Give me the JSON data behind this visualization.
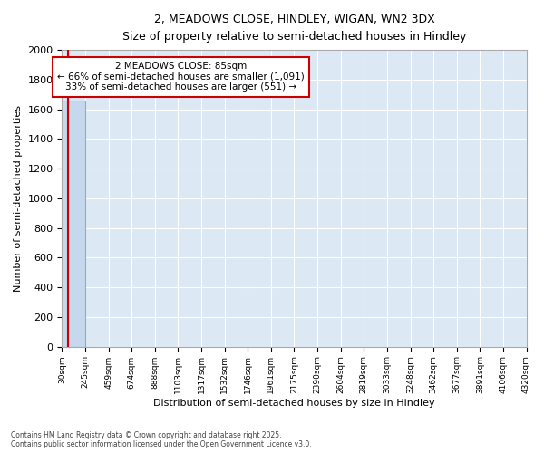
{
  "title_line1": "2, MEADOWS CLOSE, HINDLEY, WIGAN, WN2 3DX",
  "title_line2": "Size of property relative to semi-detached houses in Hindley",
  "xlabel": "Distribution of semi-detached houses by size in Hindley",
  "ylabel": "Number of semi-detached properties",
  "bin_edges": [
    30,
    245,
    459,
    674,
    888,
    1103,
    1317,
    1532,
    1746,
    1961,
    2175,
    2390,
    2604,
    2819,
    3033,
    3248,
    3462,
    3677,
    3891,
    4106,
    4320
  ],
  "bar_heights": [
    1660,
    0,
    0,
    0,
    0,
    0,
    0,
    0,
    0,
    0,
    0,
    0,
    0,
    0,
    0,
    0,
    0,
    0,
    0,
    0
  ],
  "bar_color": "#c5d8ed",
  "bar_edge_color": "#88aecf",
  "ylim": [
    0,
    2000
  ],
  "yticks": [
    0,
    200,
    400,
    600,
    800,
    1000,
    1200,
    1400,
    1600,
    1800,
    2000
  ],
  "property_size": 85,
  "annotation_title": "2 MEADOWS CLOSE: 85sqm",
  "annotation_line1": "← 66% of semi-detached houses are smaller (1,091)",
  "annotation_line2": "33% of semi-detached houses are larger (551) →",
  "annotation_color": "#cc0000",
  "vline_color": "#cc0000",
  "bg_color": "#dce9f5",
  "grid_color": "#ffffff",
  "title1_fontsize": 10,
  "title2_fontsize": 9,
  "footer_text": "Contains HM Land Registry data © Crown copyright and database right 2025.\nContains public sector information licensed under the Open Government Licence v3.0."
}
